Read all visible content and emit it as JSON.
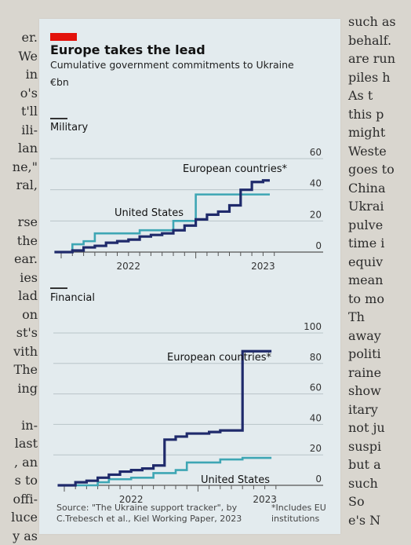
{
  "article": {
    "left_fragments": [
      "er.",
      "We",
      "in",
      "o's",
      "t'll",
      "ili-",
      "lan",
      "ne,\"",
      "ral,",
      "",
      "rse",
      "the",
      "ear.",
      "ies",
      "lad",
      "on",
      "st's",
      "vith",
      "The",
      "ing",
      "",
      "in-",
      "last",
      ", an",
      "s to",
      "offi-",
      "luce",
      "y as"
    ],
    "right_fragments": [
      "such as",
      "behalf.",
      "are run",
      "piles h",
      "As t",
      "this p",
      "might",
      "Weste",
      "goes to",
      "China",
      "Ukrai",
      "pulve",
      "time i",
      "equiv",
      "mean",
      "to mo",
      "Th",
      "away",
      "politi",
      "raine",
      "show",
      "itary",
      "not ju",
      "suspi",
      "but a",
      "such",
      "So",
      "e's N"
    ]
  },
  "chart": {
    "title": "Europe takes the lead",
    "subtitle": "Cumulative government commitments to Ukraine",
    "unit": "€bn",
    "source": "Source: \"The Ukraine support tracker\", by C.Trebesch et al., Kiel Working Paper, 2023",
    "note": "*Includes EU institutions"
  },
  "colors": {
    "europe": "#1f2a6b",
    "united_states": "#3ea6b4",
    "gridline": "#b9c4c8",
    "background": "#e3ebee",
    "accent": "#e3120b"
  },
  "chart_data": [
    {
      "type": "line",
      "title": "Military",
      "ylim": [
        0,
        60
      ],
      "yticks": [
        0,
        20,
        40,
        60
      ],
      "x_tick_labels": [
        "2022",
        "2023"
      ],
      "series": [
        {
          "name": "European countries*",
          "x": [
            "2022-01",
            "2022-02",
            "2022-03",
            "2022-04",
            "2022-05",
            "2022-06",
            "2022-07",
            "2022-08",
            "2022-09",
            "2022-10",
            "2022-11",
            "2022-12",
            "2023-01",
            "2023-02",
            "2023-03",
            "2023-04",
            "2023-05",
            "2023-06",
            "2023-07"
          ],
          "values": [
            0,
            1,
            3,
            4,
            6,
            7,
            8,
            10,
            11,
            12,
            14,
            17,
            21,
            24,
            26,
            30,
            40,
            45,
            46
          ]
        },
        {
          "name": "United States",
          "x": [
            "2022-01",
            "2022-02",
            "2022-03",
            "2022-04",
            "2022-05",
            "2022-06",
            "2022-07",
            "2022-08",
            "2022-09",
            "2022-10",
            "2022-11",
            "2022-12",
            "2023-01",
            "2023-02",
            "2023-03",
            "2023-04",
            "2023-05",
            "2023-06",
            "2023-07"
          ],
          "values": [
            0,
            5,
            7,
            12,
            12,
            12,
            12,
            14,
            14,
            14,
            20,
            20,
            37,
            37,
            37,
            37,
            37,
            37,
            37
          ]
        }
      ]
    },
    {
      "type": "line",
      "title": "Financial",
      "ylim": [
        0,
        100
      ],
      "yticks": [
        0,
        20,
        40,
        60,
        80,
        100
      ],
      "x_tick_labels": [
        "2022",
        "2023"
      ],
      "series": [
        {
          "name": "European countries*",
          "x": [
            "2022-01",
            "2022-02",
            "2022-03",
            "2022-04",
            "2022-05",
            "2022-06",
            "2022-07",
            "2022-08",
            "2022-09",
            "2022-10",
            "2022-11",
            "2022-12",
            "2023-01",
            "2023-02",
            "2023-03",
            "2023-04",
            "2023-05",
            "2023-06",
            "2023-07"
          ],
          "values": [
            0,
            2,
            3,
            5,
            7,
            9,
            10,
            11,
            13,
            30,
            32,
            34,
            34,
            35,
            36,
            36,
            88,
            88,
            88
          ]
        },
        {
          "name": "United States",
          "x": [
            "2022-01",
            "2022-02",
            "2022-03",
            "2022-04",
            "2022-05",
            "2022-06",
            "2022-07",
            "2022-08",
            "2022-09",
            "2022-10",
            "2022-11",
            "2022-12",
            "2023-01",
            "2023-02",
            "2023-03",
            "2023-04",
            "2023-05",
            "2023-06",
            "2023-07"
          ],
          "values": [
            0,
            0,
            0,
            2,
            4,
            4,
            5,
            5,
            8,
            8,
            10,
            15,
            15,
            15,
            17,
            17,
            18,
            18,
            18
          ]
        }
      ]
    }
  ]
}
